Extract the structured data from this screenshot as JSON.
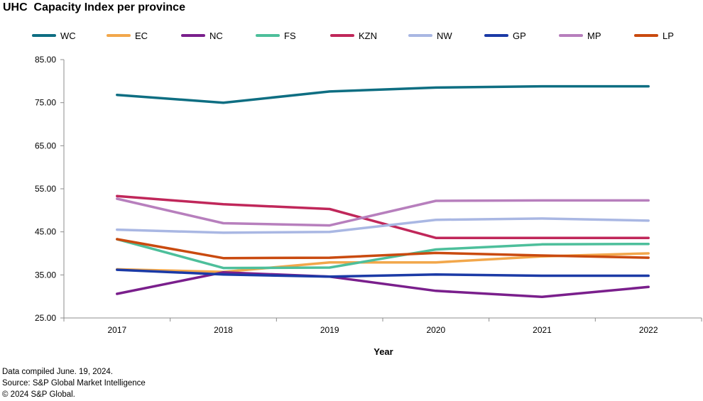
{
  "chart_data": {
    "type": "line",
    "title": "UHC  Capacity Index per province",
    "xlabel": "Year",
    "ylabel": "",
    "categories": [
      "2017",
      "2018",
      "2019",
      "2020",
      "2021",
      "2022"
    ],
    "ylim": [
      25,
      85
    ],
    "yticks": [
      "85.00",
      "75.00",
      "65.00",
      "55.00",
      "45.00",
      "35.00",
      "25.00"
    ],
    "yticks_values": [
      85,
      75,
      65,
      55,
      45,
      35,
      25
    ],
    "grid": false,
    "legend_position": "top",
    "series": [
      {
        "name": "WC",
        "color": "#0e6e82",
        "values": [
          76.8,
          75.0,
          77.6,
          78.5,
          78.8,
          78.8
        ]
      },
      {
        "name": "EC",
        "color": "#f2a74b",
        "values": [
          36.3,
          35.7,
          37.9,
          37.9,
          39.3,
          40.0
        ]
      },
      {
        "name": "NC",
        "color": "#7a1f8c",
        "values": [
          30.6,
          35.6,
          34.6,
          31.3,
          29.9,
          32.2
        ]
      },
      {
        "name": "FS",
        "color": "#4dbf9b",
        "values": [
          43.3,
          36.6,
          36.7,
          40.9,
          42.1,
          42.2
        ]
      },
      {
        "name": "KZN",
        "color": "#c0275a",
        "values": [
          53.3,
          51.4,
          50.3,
          43.6,
          43.6,
          43.6
        ]
      },
      {
        "name": "NW",
        "color": "#a9b7e3",
        "values": [
          45.5,
          44.8,
          45.0,
          47.8,
          48.1,
          47.6
        ]
      },
      {
        "name": "GP",
        "color": "#1b3aa6",
        "values": [
          36.2,
          35.1,
          34.6,
          35.1,
          34.8,
          34.8
        ]
      },
      {
        "name": "MP",
        "color": "#b77fbd",
        "values": [
          52.7,
          47.0,
          46.5,
          52.2,
          52.3,
          52.3
        ]
      },
      {
        "name": "LP",
        "color": "#c94a0f",
        "values": [
          43.3,
          38.9,
          39.0,
          40.1,
          39.5,
          39.0
        ]
      }
    ]
  },
  "footnotes": [
    "Data compiled June. 19, 2024.",
    "Source: S&P Global Market Intelligence",
    "© 2024 S&P Global."
  ]
}
